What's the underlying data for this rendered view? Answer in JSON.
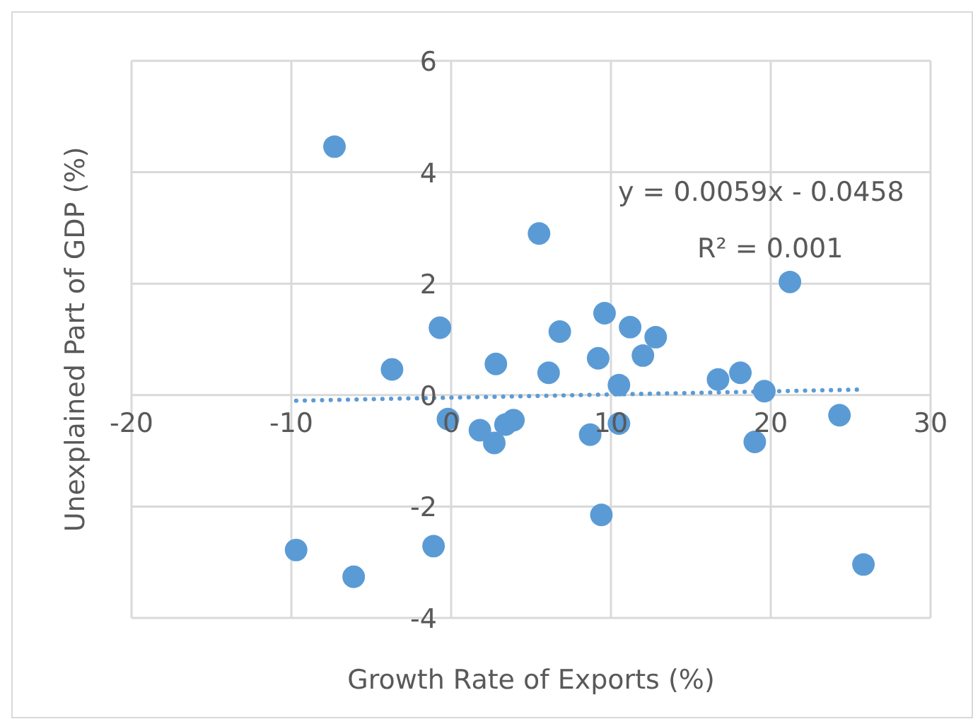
{
  "chart_data": {
    "type": "scatter",
    "xlabel": "Growth Rate of Exports (%)",
    "ylabel": "Unexplained Part of GDP (%)",
    "xlim": [
      -20,
      30
    ],
    "xticks": [
      -20,
      -10,
      0,
      10,
      20,
      30
    ],
    "ylim": [
      -4,
      6
    ],
    "yticks": [
      -4,
      -2,
      0,
      2,
      4,
      6
    ],
    "grid": true,
    "marker": "circle",
    "legend": false,
    "annotations": [
      "y = 0.0059x - 0.0458",
      "R² = 0.001"
    ],
    "series": [
      {
        "color": "#5b9bd5",
        "x": [
          -7.3,
          5.5,
          -0.7,
          -3.7,
          2.8,
          -0.2,
          1.8,
          2.7,
          3.4,
          3.9,
          6.1,
          6.8,
          9.6,
          11.2,
          12.8,
          9.2,
          12.0,
          10.5,
          16.7,
          18.1,
          19.6,
          21.2,
          24.3,
          10.5,
          8.7,
          19.0,
          9.4,
          25.8,
          -9.7,
          -6.1,
          -1.1
        ],
        "values": [
          4.46,
          2.9,
          1.21,
          0.46,
          0.56,
          -0.43,
          -0.63,
          -0.86,
          -0.53,
          -0.45,
          0.4,
          1.14,
          1.47,
          1.22,
          1.04,
          0.66,
          0.71,
          0.18,
          0.28,
          0.4,
          0.07,
          2.03,
          -0.36,
          -0.51,
          -0.71,
          -0.84,
          -2.15,
          -3.04,
          -2.78,
          -3.26,
          -2.71
        ]
      },
      {
        "type": "line",
        "color": "#5b9bd5",
        "line_style": "dotted",
        "marker": "none",
        "x": [
          -9.7,
          25.8
        ],
        "values": [
          -0.1,
          0.1
        ]
      }
    ]
  }
}
